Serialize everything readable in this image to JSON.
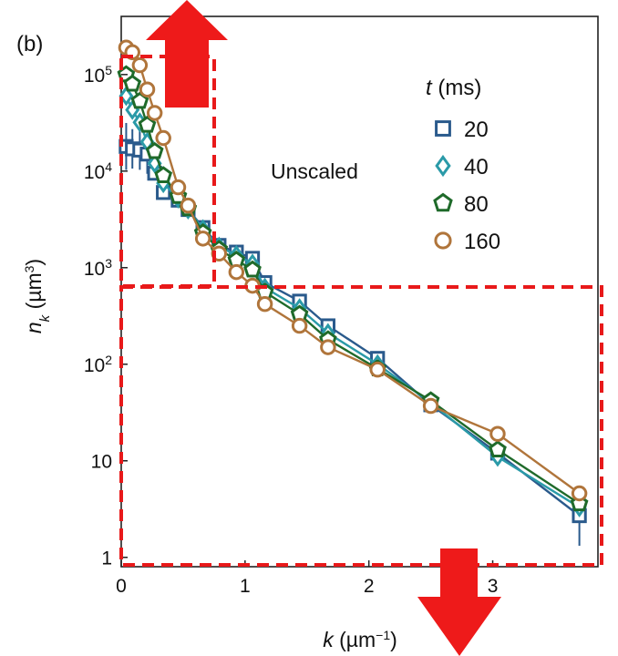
{
  "panel_label": "(b)",
  "chart_data": {
    "type": "line",
    "scale": {
      "x": "linear",
      "y": "log"
    },
    "xlim": [
      0,
      3.85
    ],
    "ylim": [
      0.8,
      400000
    ],
    "x_ticks": [
      {
        "value": 0,
        "label": "0"
      },
      {
        "value": 1,
        "label": "1"
      },
      {
        "value": 2,
        "label": "2"
      },
      {
        "value": 3,
        "label": "3"
      }
    ],
    "y_ticks": [
      {
        "value": 1,
        "label": "1",
        "sup": ""
      },
      {
        "value": 10,
        "label": "10",
        "sup": ""
      },
      {
        "value": 100,
        "label": "10",
        "sup": "2"
      },
      {
        "value": 1000,
        "label": "10",
        "sup": "3"
      },
      {
        "value": 10000,
        "label": "10",
        "sup": "4"
      },
      {
        "value": 100000,
        "label": "10",
        "sup": "5"
      }
    ],
    "xlabel": {
      "var": "k",
      "unit": " (µm",
      "sup": "−1",
      "close": ")"
    },
    "ylabel": {
      "var": "n",
      "sub": "k",
      "unit": " (µm",
      "sup": "3",
      "close": ")"
    },
    "annotation": "Unscaled",
    "legend": {
      "title_var": "t",
      "title_unit": " (ms)",
      "position": "top-right"
    },
    "series": [
      {
        "name": "20",
        "marker": "square",
        "color": "#2a5a8c",
        "x": [
          0.04,
          0.09,
          0.15,
          0.21,
          0.27,
          0.34,
          0.46,
          0.54,
          0.66,
          0.79,
          0.93,
          1.06,
          1.16,
          1.44,
          1.67,
          2.07,
          2.5,
          3.04,
          3.7
        ],
        "y": [
          18000,
          17000,
          16500,
          15000,
          9500,
          6000,
          5000,
          4000,
          2600,
          1700,
          1450,
          1250,
          700,
          450,
          250,
          115,
          38,
          12,
          2.7
        ]
      },
      {
        "name": "40",
        "marker": "diamond",
        "color": "#2a9aa8",
        "x": [
          0.04,
          0.09,
          0.15,
          0.21,
          0.27,
          0.34,
          0.46,
          0.54,
          0.66,
          0.79,
          0.93,
          1.06,
          1.16,
          1.44,
          1.67,
          2.07,
          2.5,
          3.04,
          3.7
        ],
        "y": [
          60000,
          43000,
          32000,
          20000,
          12000,
          7500,
          5200,
          4000,
          2500,
          1650,
          1350,
          1100,
          620,
          380,
          210,
          100,
          40,
          11,
          3.3
        ]
      },
      {
        "name": "80",
        "marker": "pentagon",
        "color": "#1f6a2a",
        "x": [
          0.04,
          0.09,
          0.15,
          0.21,
          0.27,
          0.34,
          0.46,
          0.54,
          0.66,
          0.79,
          0.93,
          1.06,
          1.16,
          1.44,
          1.67,
          2.07,
          2.5,
          3.04,
          3.7
        ],
        "y": [
          100000,
          80000,
          53000,
          30000,
          16000,
          9000,
          5500,
          4100,
          2300,
          1550,
          1200,
          950,
          560,
          330,
          180,
          90,
          42,
          13,
          3.6
        ]
      },
      {
        "name": "160",
        "marker": "circle",
        "color": "#b0753b",
        "x": [
          0.04,
          0.09,
          0.15,
          0.21,
          0.27,
          0.34,
          0.46,
          0.54,
          0.66,
          0.79,
          0.93,
          1.06,
          1.16,
          1.44,
          1.67,
          2.07,
          2.5,
          3.04,
          3.7
        ],
        "y": [
          190000,
          170000,
          125000,
          70000,
          40000,
          22000,
          6800,
          4400,
          2000,
          1400,
          900,
          650,
          420,
          250,
          150,
          88,
          37,
          19,
          4.6
        ]
      }
    ]
  }
}
